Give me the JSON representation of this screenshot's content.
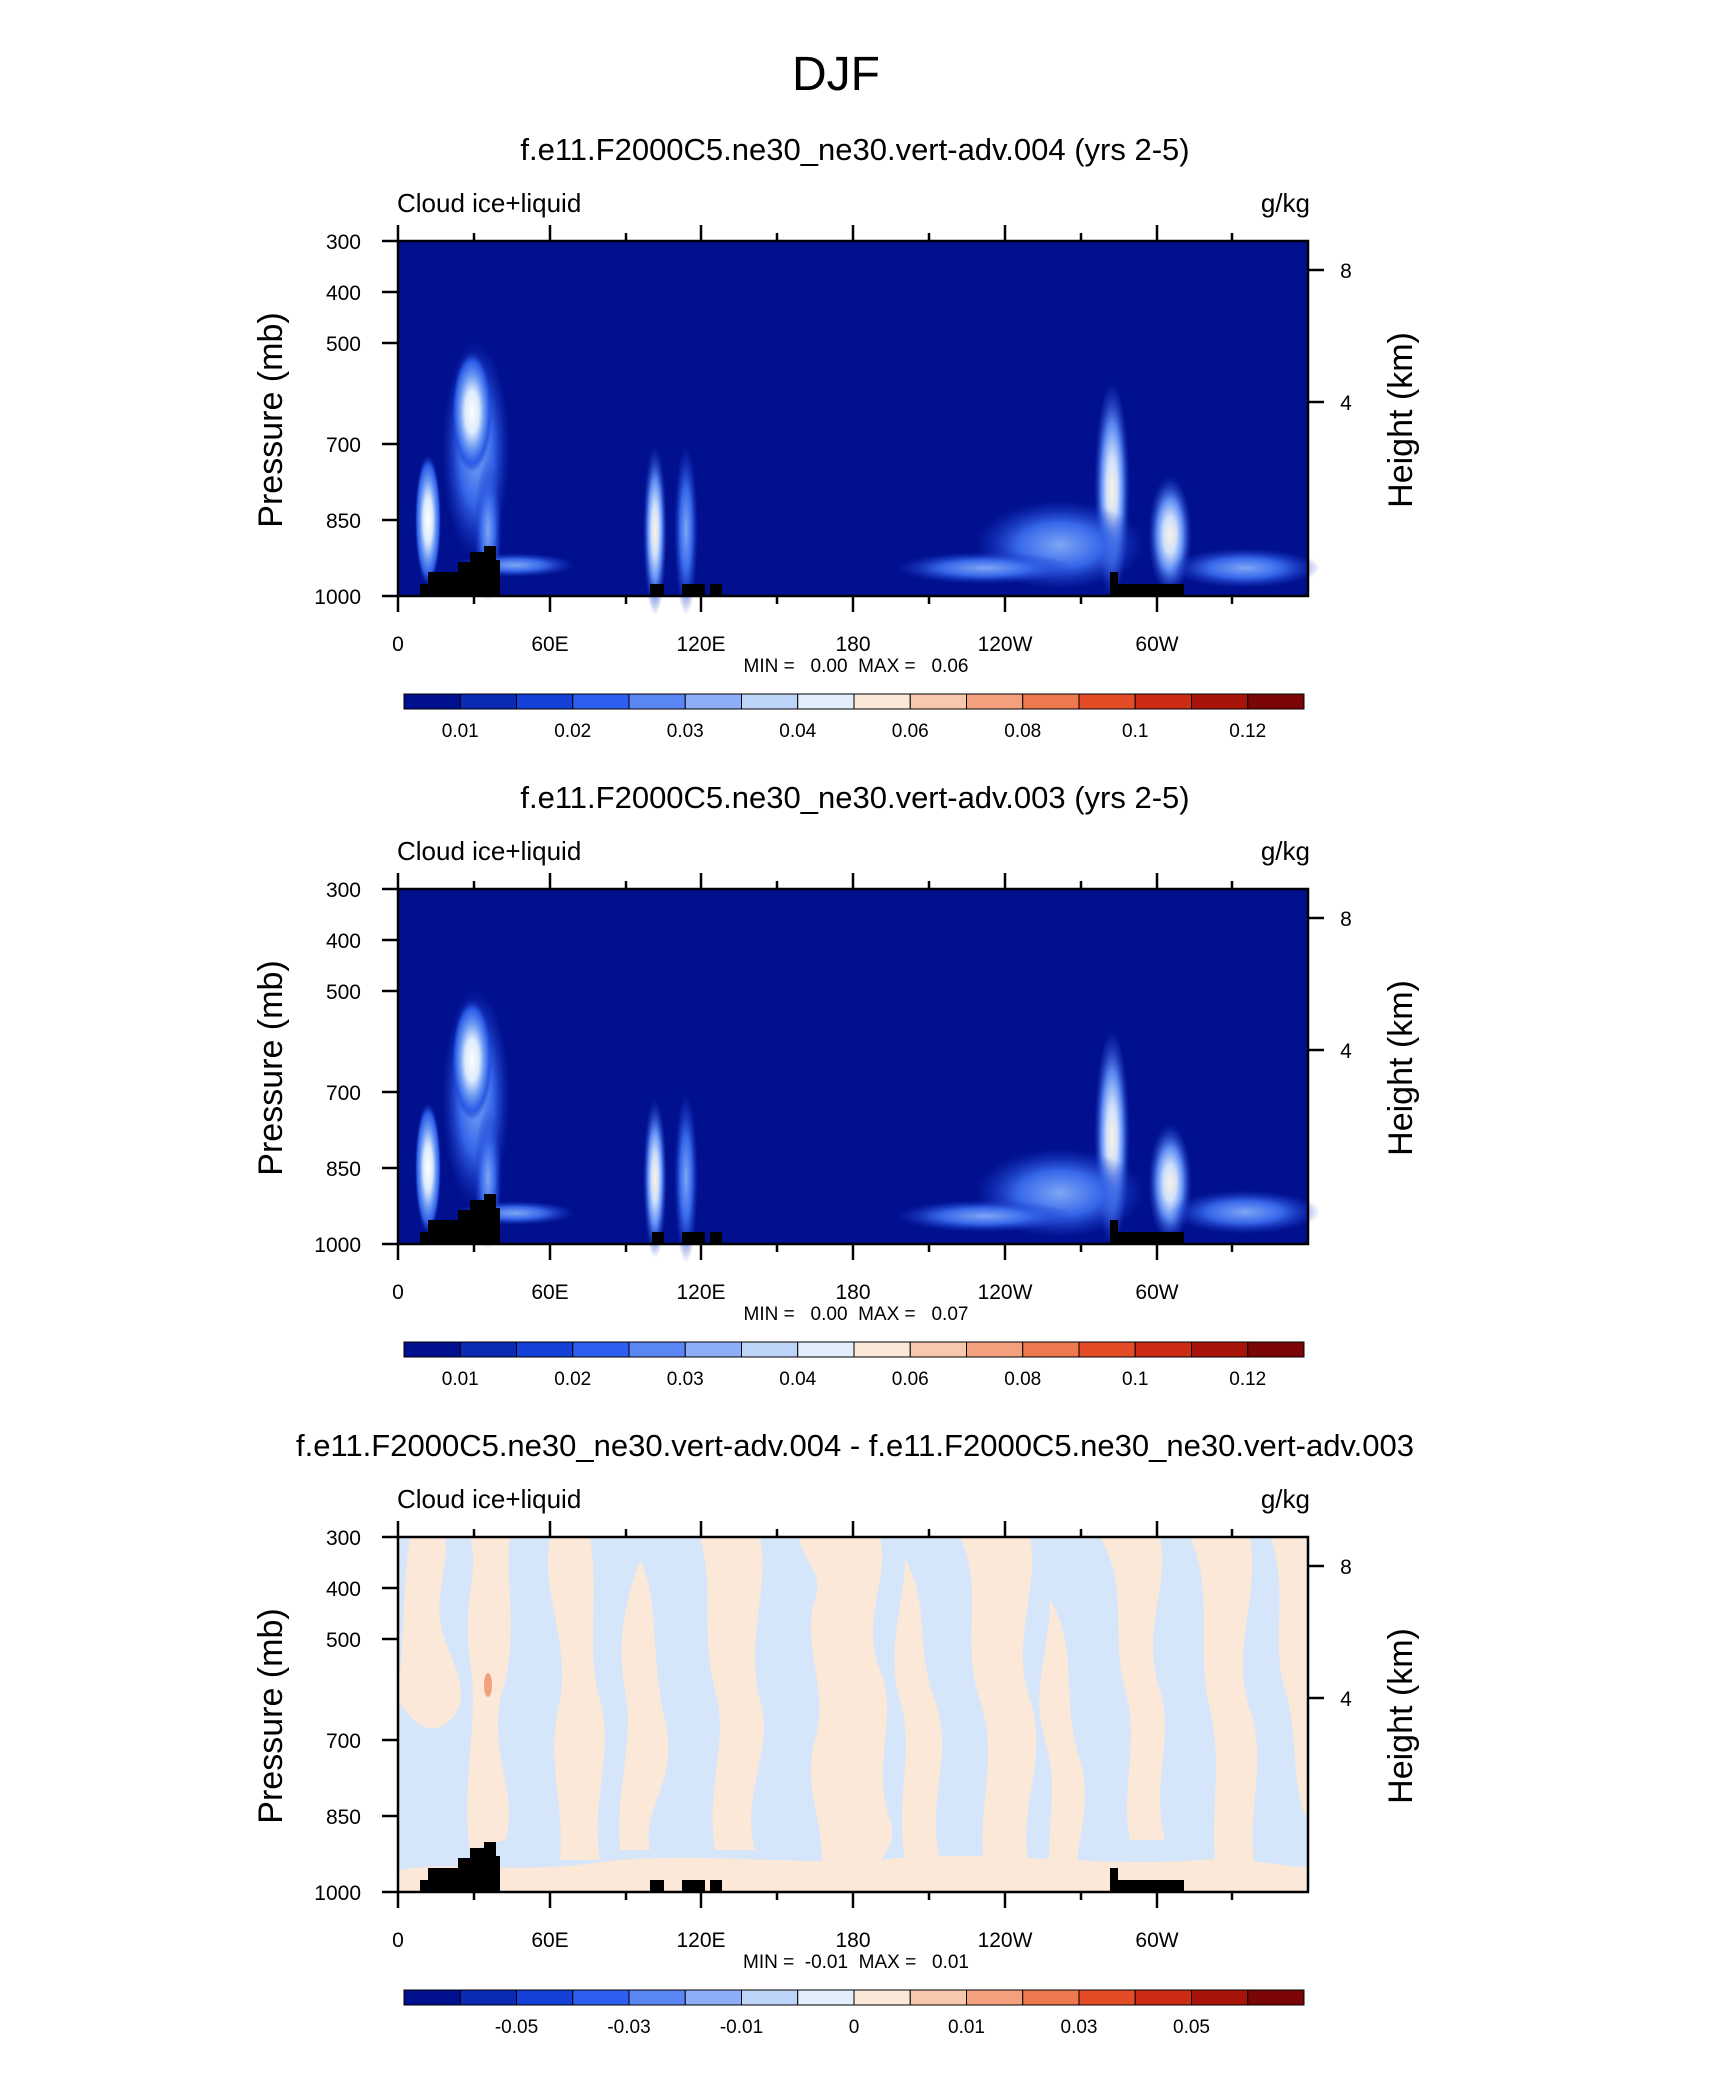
{
  "figure_title": "DJF",
  "chart_data": [
    {
      "type": "heatmap",
      "title": "f.e11.F2000C5.ne30_ne30.vert-adv.004 (yrs 2-5)",
      "left_label": "Cloud ice+liquid",
      "right_label": "g/kg",
      "ylabel": "Pressure (mb)",
      "ylabel_right": "Height (km)",
      "xticks": [
        "0",
        "60E",
        "120E",
        "180",
        "120W",
        "60W"
      ],
      "yticks": [
        "300",
        "400",
        "500",
        "700",
        "850",
        "1000"
      ],
      "yticks_right": [
        "8",
        "4"
      ],
      "stats_text": "MIN =   0.00  MAX =   0.06",
      "min": 0.0,
      "max": 0.06,
      "background_color": "#00108e",
      "colorbar": {
        "colors": [
          "#00108e",
          "#0a2ab4",
          "#1440d8",
          "#2c5ef0",
          "#5a86f4",
          "#8caef6",
          "#bcd4f8",
          "#e2eefa",
          "#fbe8d8",
          "#f6c8ac",
          "#f2a07e",
          "#ee7850",
          "#e44c28",
          "#cc2c14",
          "#a8140a",
          "#7c0606"
        ],
        "labels": [
          "0.01",
          "0.02",
          "0.03",
          "0.04",
          "0.06",
          "0.08",
          "0.1",
          "0.12"
        ]
      }
    },
    {
      "type": "heatmap",
      "title": "f.e11.F2000C5.ne30_ne30.vert-adv.003 (yrs 2-5)",
      "left_label": "Cloud ice+liquid",
      "right_label": "g/kg",
      "ylabel": "Pressure (mb)",
      "ylabel_right": "Height (km)",
      "xticks": [
        "0",
        "60E",
        "120E",
        "180",
        "120W",
        "60W"
      ],
      "yticks": [
        "300",
        "400",
        "500",
        "700",
        "850",
        "1000"
      ],
      "yticks_right": [
        "8",
        "4"
      ],
      "stats_text": "MIN =   0.00  MAX =   0.07",
      "min": 0.0,
      "max": 0.07,
      "background_color": "#00108e",
      "colorbar": {
        "colors": [
          "#00108e",
          "#0a2ab4",
          "#1440d8",
          "#2c5ef0",
          "#5a86f4",
          "#8caef6",
          "#bcd4f8",
          "#e2eefa",
          "#fbe8d8",
          "#f6c8ac",
          "#f2a07e",
          "#ee7850",
          "#e44c28",
          "#cc2c14",
          "#a8140a",
          "#7c0606"
        ],
        "labels": [
          "0.01",
          "0.02",
          "0.03",
          "0.04",
          "0.06",
          "0.08",
          "0.1",
          "0.12"
        ]
      }
    },
    {
      "type": "heatmap",
      "title": "f.e11.F2000C5.ne30_ne30.vert-adv.004 - f.e11.F2000C5.ne30_ne30.vert-adv.003",
      "left_label": "Cloud ice+liquid",
      "right_label": "g/kg",
      "ylabel": "Pressure (mb)",
      "ylabel_right": "Height (km)",
      "xticks": [
        "0",
        "60E",
        "120E",
        "180",
        "120W",
        "60W"
      ],
      "yticks": [
        "300",
        "400",
        "500",
        "700",
        "850",
        "1000"
      ],
      "yticks_right": [
        "8",
        "4"
      ],
      "stats_text": "MIN =  -0.01  MAX =   0.01",
      "min": -0.01,
      "max": 0.01,
      "background_color": "#d6e6fa",
      "colorbar": {
        "colors": [
          "#00108e",
          "#0a2ab4",
          "#1440d8",
          "#2c5ef0",
          "#5a86f4",
          "#8caef6",
          "#bcd4f8",
          "#e2eefa",
          "#fbe8d8",
          "#f6c8ac",
          "#f2a07e",
          "#ee7850",
          "#e44c28",
          "#cc2c14",
          "#a8140a",
          "#7c0606"
        ],
        "labels": [
          "-0.05",
          "-0.03",
          "-0.01",
          "0",
          "0.01",
          "0.03",
          "0.05"
        ]
      }
    }
  ]
}
